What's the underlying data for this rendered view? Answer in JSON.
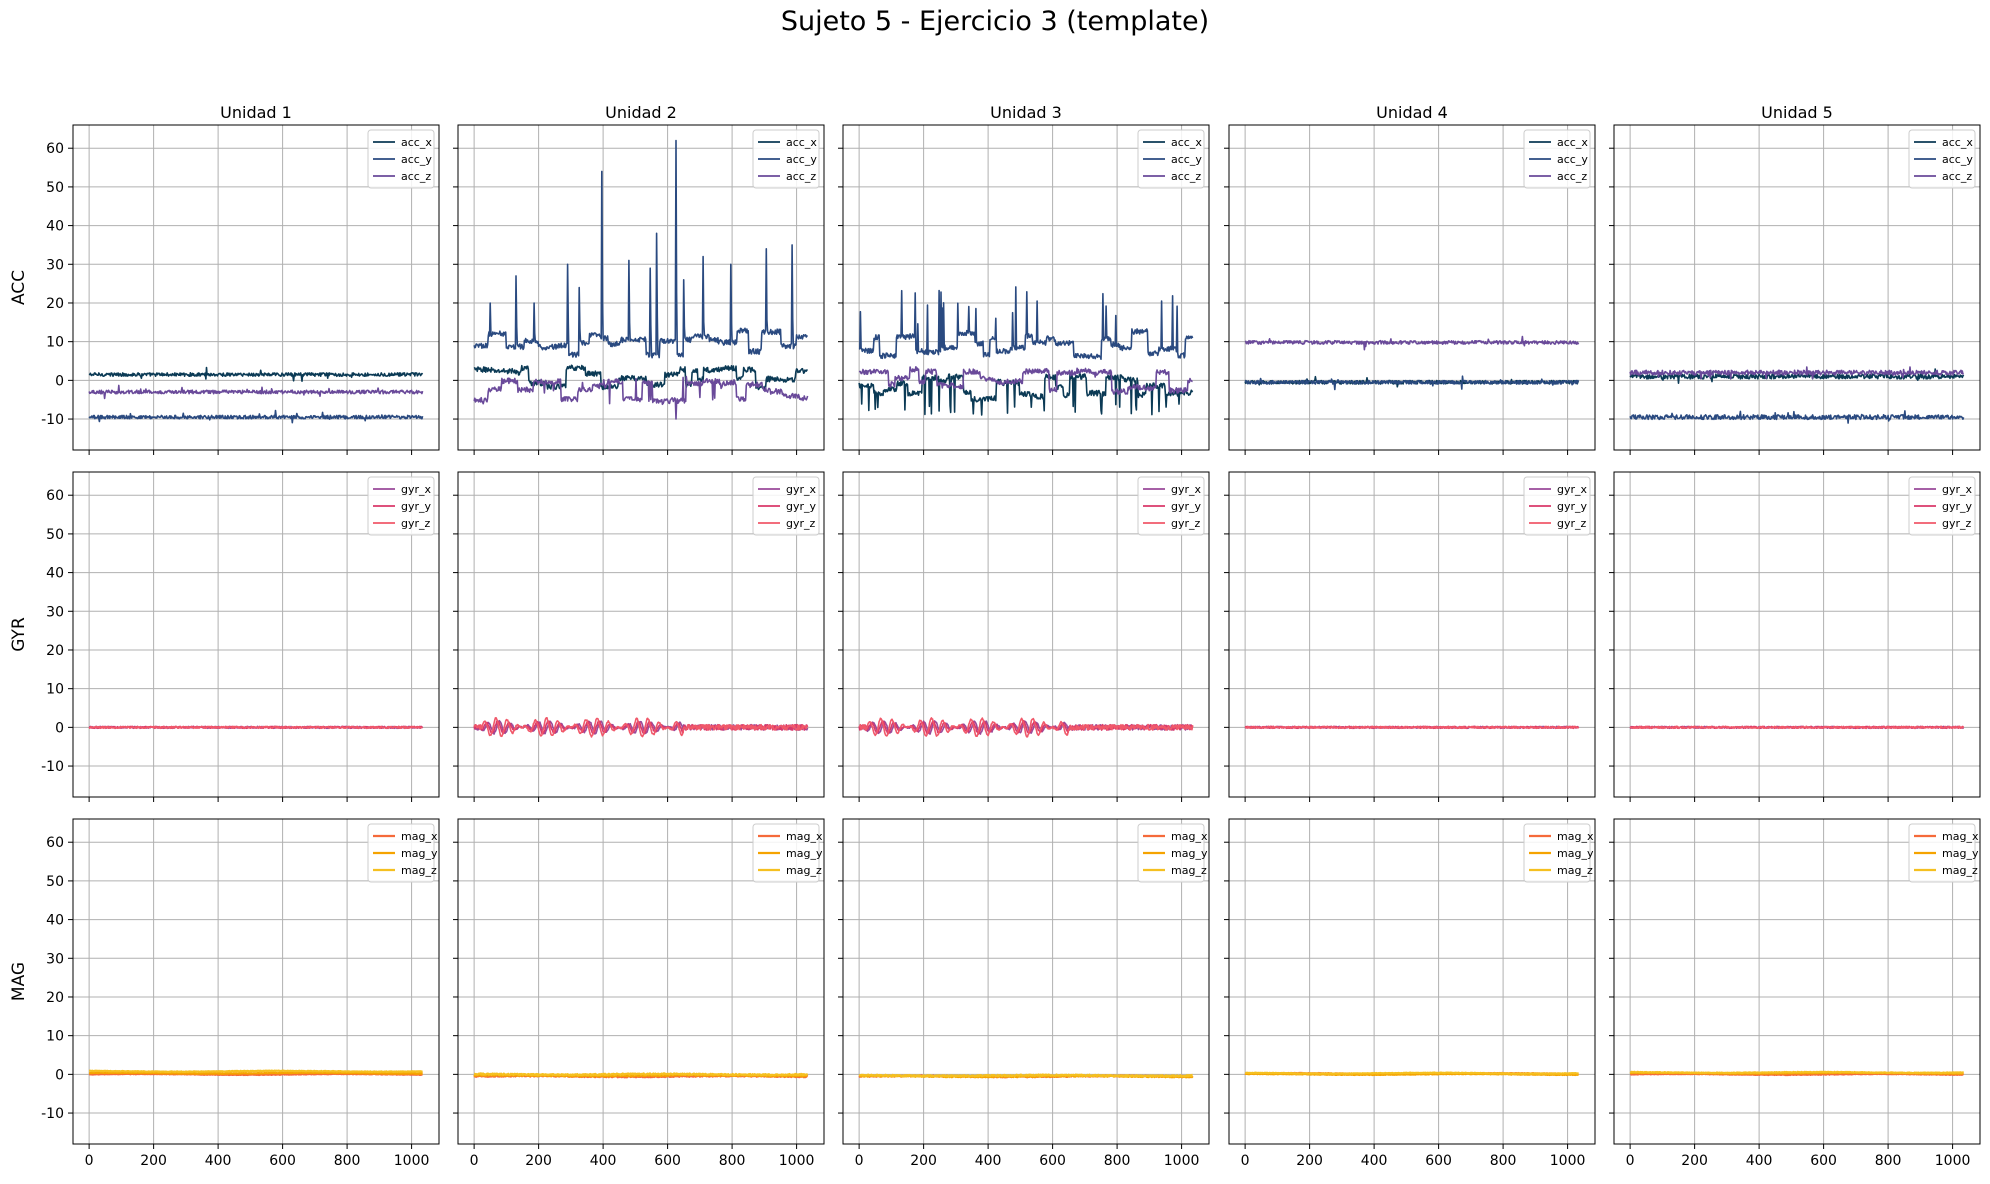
{
  "figure": {
    "title": "Sujeto 5 - Ejercicio 3 (template)"
  },
  "chart_data": {
    "type": "line",
    "layout": "3x5 grid",
    "rows": [
      "ACC",
      "GYR",
      "MAG"
    ],
    "columns": [
      "Unidad 1",
      "Unidad 2",
      "Unidad 3",
      "Unidad 4",
      "Unidad 5"
    ],
    "xlim": [
      -50,
      1085
    ],
    "ylim": [
      -18,
      66
    ],
    "x_ticks": [
      0,
      200,
      400,
      600,
      800,
      1000
    ],
    "y_ticks": [
      -10,
      0,
      10,
      20,
      30,
      40,
      50,
      60
    ],
    "grid": true,
    "legend_position": "top-right",
    "sample_count": 1035,
    "series_names": {
      "ACC": [
        "acc_x",
        "acc_y",
        "acc_z"
      ],
      "GYR": [
        "gyr_x",
        "gyr_y",
        "gyr_z"
      ],
      "MAG": [
        "mag_x",
        "mag_y",
        "mag_z"
      ]
    },
    "colors": {
      "ACC": [
        "#0b3a55",
        "#2a4a80",
        "#6a4a9a"
      ],
      "GYR": [
        "#9a4a9a",
        "#d9386a",
        "#f0586a"
      ],
      "MAG": [
        "#f56a3a",
        "#f5a300",
        "#f5c020"
      ]
    },
    "approx_levels": {
      "ACC": [
        {
          "acc_x": 1.5,
          "acc_y": -9.5,
          "acc_z": -3.0
        },
        {
          "acc_x": 1.0,
          "acc_y": 9.5,
          "acc_z": -2.5
        },
        {
          "acc_x": -2.0,
          "acc_y": 9.5,
          "acc_z": 0.0
        },
        {
          "acc_x": -0.5,
          "acc_y": -0.5,
          "acc_z": 9.8
        },
        {
          "acc_x": 1.0,
          "acc_y": -9.5,
          "acc_z": 2.0
        }
      ],
      "GYR": [
        {
          "gyr_x": 0,
          "gyr_y": 0,
          "gyr_z": 0
        },
        {
          "gyr_x": 0,
          "gyr_y": 0,
          "gyr_z": 0
        },
        {
          "gyr_x": 0,
          "gyr_y": 0,
          "gyr_z": 0
        },
        {
          "gyr_x": 0,
          "gyr_y": 0,
          "gyr_z": 0
        },
        {
          "gyr_x": 0,
          "gyr_y": 0,
          "gyr_z": 0
        }
      ],
      "MAG": [
        {
          "mag_x": 0.0,
          "mag_y": 0.3,
          "mag_z": 0.8
        },
        {
          "mag_x": -0.5,
          "mag_y": -0.3,
          "mag_z": 0.0
        },
        {
          "mag_x": -0.5,
          "mag_y": -0.5,
          "mag_z": -0.3
        },
        {
          "mag_x": 0.2,
          "mag_y": 0.0,
          "mag_z": 0.3
        },
        {
          "mag_x": 0.0,
          "mag_y": 0.3,
          "mag_z": 0.5
        }
      ]
    },
    "notable_peaks": {
      "Unidad 2 acc_y": [
        {
          "x": 395,
          "y": 54
        },
        {
          "x": 625,
          "y": 62
        }
      ]
    }
  }
}
